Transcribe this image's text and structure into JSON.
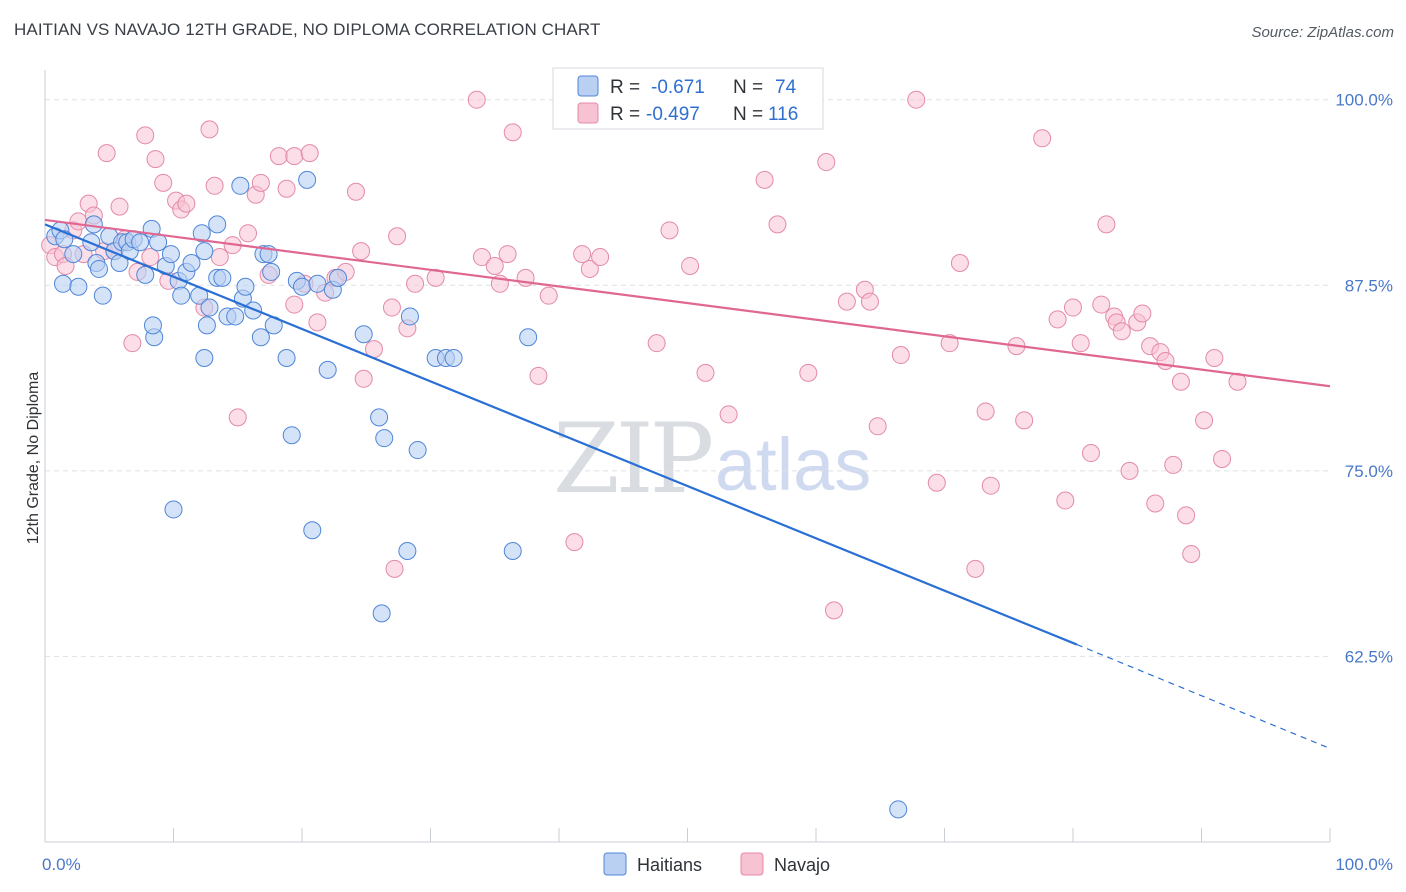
{
  "title": "HAITIAN VS NAVAJO 12TH GRADE, NO DIPLOMA CORRELATION CHART",
  "source": "Source: ZipAtlas.com",
  "watermark": {
    "zip": "ZIP",
    "atlas": "atlas"
  },
  "colors": {
    "haitians_fill": "#b9d0f3",
    "haitians_stroke": "#4f86d8",
    "haitians_line": "#2a6fd4",
    "navajo_fill": "#f7c3d3",
    "navajo_stroke": "#e48aa8",
    "navajo_line": "#e06792",
    "grid": "#dde1e6",
    "tick_label": "#4a78c8"
  },
  "legend": {
    "r_label": "R =",
    "n_label": "N =",
    "rows": [
      {
        "series": "Haitians",
        "r": "-0.671",
        "n": "74"
      },
      {
        "series": "Navajo",
        "r": "-0.497",
        "n": "116"
      }
    ]
  },
  "chart_data": {
    "type": "scatter",
    "title": "HAITIAN VS NAVAJO 12TH GRADE, NO DIPLOMA CORRELATION CHART",
    "xlabel": "",
    "ylabel": "12th Grade, No Diploma",
    "xlim": [
      0,
      100
    ],
    "ylim": [
      50,
      102
    ],
    "x_tick_labels": [
      {
        "value": 0,
        "label": "0.0%"
      },
      {
        "value": 100,
        "label": "100.0%"
      }
    ],
    "y_tick_labels": [
      {
        "value": 100,
        "label": "100.0%"
      },
      {
        "value": 87.5,
        "label": "87.5%"
      },
      {
        "value": 75,
        "label": "75.0%"
      },
      {
        "value": 62.5,
        "label": "62.5%"
      }
    ],
    "grid": true,
    "legend_position": "top-center",
    "series": [
      {
        "name": "Haitians",
        "trend": {
          "x0": 0,
          "y0": 91.6,
          "x1": 80.3,
          "y1": 63.3,
          "dash_to_x": 100,
          "dash_to_y": 56.3
        },
        "points": [
          [
            0.8,
            90.8
          ],
          [
            1.2,
            91.2
          ],
          [
            1.5,
            90.6
          ],
          [
            2.2,
            89.6
          ],
          [
            1.4,
            87.6
          ],
          [
            2.6,
            87.4
          ],
          [
            3.6,
            90.4
          ],
          [
            3.8,
            91.6
          ],
          [
            4.0,
            89.0
          ],
          [
            4.5,
            86.8
          ],
          [
            4.2,
            88.6
          ],
          [
            5.0,
            90.8
          ],
          [
            5.4,
            89.8
          ],
          [
            5.8,
            89.0
          ],
          [
            6.0,
            90.4
          ],
          [
            6.4,
            90.4
          ],
          [
            6.6,
            89.8
          ],
          [
            6.9,
            90.6
          ],
          [
            7.4,
            90.4
          ],
          [
            7.8,
            88.2
          ],
          [
            8.3,
            91.3
          ],
          [
            8.5,
            84.0
          ],
          [
            8.8,
            90.4
          ],
          [
            9.4,
            88.8
          ],
          [
            9.8,
            89.6
          ],
          [
            10.4,
            87.8
          ],
          [
            10.6,
            86.8
          ],
          [
            11.0,
            88.4
          ],
          [
            11.4,
            89.0
          ],
          [
            12.0,
            86.8
          ],
          [
            12.2,
            91.0
          ],
          [
            12.4,
            89.8
          ],
          [
            12.8,
            86.0
          ],
          [
            13.4,
            88.0
          ],
          [
            13.8,
            88.0
          ],
          [
            14.2,
            85.4
          ],
          [
            14.8,
            85.4
          ],
          [
            15.4,
            86.6
          ],
          [
            15.6,
            87.4
          ],
          [
            16.2,
            85.8
          ],
          [
            16.8,
            84.0
          ],
          [
            17.0,
            89.6
          ],
          [
            17.4,
            89.6
          ],
          [
            17.6,
            88.4
          ],
          [
            17.8,
            84.8
          ],
          [
            18.8,
            82.6
          ],
          [
            19.6,
            87.8
          ],
          [
            20.0,
            87.4
          ],
          [
            20.4,
            94.6
          ],
          [
            21.2,
            87.6
          ],
          [
            22.0,
            81.8
          ],
          [
            22.4,
            87.2
          ],
          [
            22.8,
            88.0
          ],
          [
            24.8,
            84.2
          ],
          [
            26.0,
            78.6
          ],
          [
            26.4,
            77.2
          ],
          [
            28.4,
            85.4
          ],
          [
            29.0,
            76.4
          ],
          [
            30.4,
            82.6
          ],
          [
            31.2,
            82.6
          ],
          [
            31.8,
            82.6
          ],
          [
            37.6,
            84.0
          ],
          [
            19.2,
            77.4
          ],
          [
            20.8,
            71.0
          ],
          [
            28.2,
            69.6
          ],
          [
            10.0,
            72.4
          ],
          [
            36.4,
            69.6
          ],
          [
            26.2,
            65.4
          ],
          [
            66.4,
            52.2
          ],
          [
            12.6,
            84.8
          ],
          [
            15.2,
            94.2
          ],
          [
            13.4,
            91.6
          ],
          [
            8.4,
            84.8
          ],
          [
            12.4,
            82.6
          ]
        ]
      },
      {
        "name": "Navajo",
        "trend": {
          "x0": 0,
          "y0": 91.9,
          "x1": 100,
          "y1": 80.7
        },
        "points": [
          [
            0.4,
            90.2
          ],
          [
            0.8,
            89.4
          ],
          [
            1.4,
            89.6
          ],
          [
            1.6,
            88.8
          ],
          [
            2.2,
            91.2
          ],
          [
            2.6,
            91.8
          ],
          [
            3.0,
            89.6
          ],
          [
            3.4,
            93.0
          ],
          [
            3.8,
            92.2
          ],
          [
            4.6,
            89.8
          ],
          [
            4.8,
            96.4
          ],
          [
            5.4,
            89.8
          ],
          [
            5.8,
            92.8
          ],
          [
            6.2,
            90.6
          ],
          [
            6.8,
            83.6
          ],
          [
            7.2,
            88.4
          ],
          [
            7.8,
            97.6
          ],
          [
            8.2,
            89.4
          ],
          [
            8.6,
            96.0
          ],
          [
            9.2,
            94.4
          ],
          [
            9.6,
            87.8
          ],
          [
            10.2,
            93.2
          ],
          [
            10.6,
            92.6
          ],
          [
            11.0,
            93.0
          ],
          [
            12.4,
            86.0
          ],
          [
            12.8,
            98.0
          ],
          [
            13.2,
            94.2
          ],
          [
            13.6,
            89.4
          ],
          [
            14.6,
            90.2
          ],
          [
            15.0,
            78.6
          ],
          [
            15.8,
            91.0
          ],
          [
            16.4,
            93.6
          ],
          [
            16.8,
            94.4
          ],
          [
            17.4,
            88.2
          ],
          [
            18.2,
            96.2
          ],
          [
            19.4,
            86.2
          ],
          [
            19.4,
            96.2
          ],
          [
            20.2,
            87.6
          ],
          [
            20.6,
            96.4
          ],
          [
            21.2,
            85.0
          ],
          [
            21.8,
            87.0
          ],
          [
            22.6,
            88.0
          ],
          [
            23.4,
            88.4
          ],
          [
            24.2,
            93.8
          ],
          [
            24.6,
            89.8
          ],
          [
            24.8,
            81.2
          ],
          [
            25.6,
            83.2
          ],
          [
            27.0,
            86.0
          ],
          [
            27.4,
            90.8
          ],
          [
            28.2,
            84.6
          ],
          [
            28.8,
            87.6
          ],
          [
            30.4,
            88.0
          ],
          [
            33.6,
            100.0
          ],
          [
            34.0,
            89.4
          ],
          [
            35.0,
            88.8
          ],
          [
            35.4,
            87.6
          ],
          [
            36.0,
            89.6
          ],
          [
            36.4,
            97.8
          ],
          [
            37.4,
            88.0
          ],
          [
            38.4,
            81.4
          ],
          [
            39.2,
            86.8
          ],
          [
            41.2,
            70.2
          ],
          [
            41.8,
            89.6
          ],
          [
            42.4,
            88.6
          ],
          [
            43.2,
            89.4
          ],
          [
            46.0,
            100.0
          ],
          [
            47.6,
            83.6
          ],
          [
            48.6,
            91.2
          ],
          [
            50.2,
            88.8
          ],
          [
            51.4,
            81.6
          ],
          [
            53.2,
            78.8
          ],
          [
            55.2,
            100.0
          ],
          [
            56.0,
            94.6
          ],
          [
            57.0,
            91.6
          ],
          [
            59.4,
            81.6
          ],
          [
            60.8,
            95.8
          ],
          [
            61.4,
            65.6
          ],
          [
            62.4,
            86.4
          ],
          [
            63.8,
            87.2
          ],
          [
            64.2,
            86.4
          ],
          [
            64.8,
            78.0
          ],
          [
            66.6,
            82.8
          ],
          [
            67.8,
            100.0
          ],
          [
            69.4,
            74.2
          ],
          [
            70.4,
            83.6
          ],
          [
            71.2,
            89.0
          ],
          [
            72.4,
            68.4
          ],
          [
            73.2,
            79.0
          ],
          [
            73.6,
            74.0
          ],
          [
            75.6,
            83.4
          ],
          [
            76.2,
            78.4
          ],
          [
            77.6,
            97.4
          ],
          [
            78.8,
            85.2
          ],
          [
            79.4,
            73.0
          ],
          [
            80.0,
            86.0
          ],
          [
            80.6,
            83.6
          ],
          [
            81.4,
            76.2
          ],
          [
            82.2,
            86.2
          ],
          [
            82.6,
            91.6
          ],
          [
            83.2,
            85.4
          ],
          [
            83.4,
            85.0
          ],
          [
            83.8,
            84.4
          ],
          [
            84.4,
            75.0
          ],
          [
            85.0,
            85.0
          ],
          [
            85.4,
            85.6
          ],
          [
            86.0,
            83.4
          ],
          [
            86.4,
            72.8
          ],
          [
            86.8,
            83.0
          ],
          [
            87.2,
            82.4
          ],
          [
            87.8,
            75.4
          ],
          [
            88.4,
            81.0
          ],
          [
            88.8,
            72.0
          ],
          [
            89.2,
            69.4
          ],
          [
            90.2,
            78.4
          ],
          [
            91.0,
            82.6
          ],
          [
            91.6,
            75.8
          ],
          [
            92.8,
            81.0
          ],
          [
            53.8,
            100.0
          ],
          [
            18.8,
            94.0
          ],
          [
            27.2,
            68.4
          ]
        ]
      }
    ]
  },
  "bottom_legend": [
    {
      "label": "Haitians"
    },
    {
      "label": "Navajo"
    }
  ]
}
